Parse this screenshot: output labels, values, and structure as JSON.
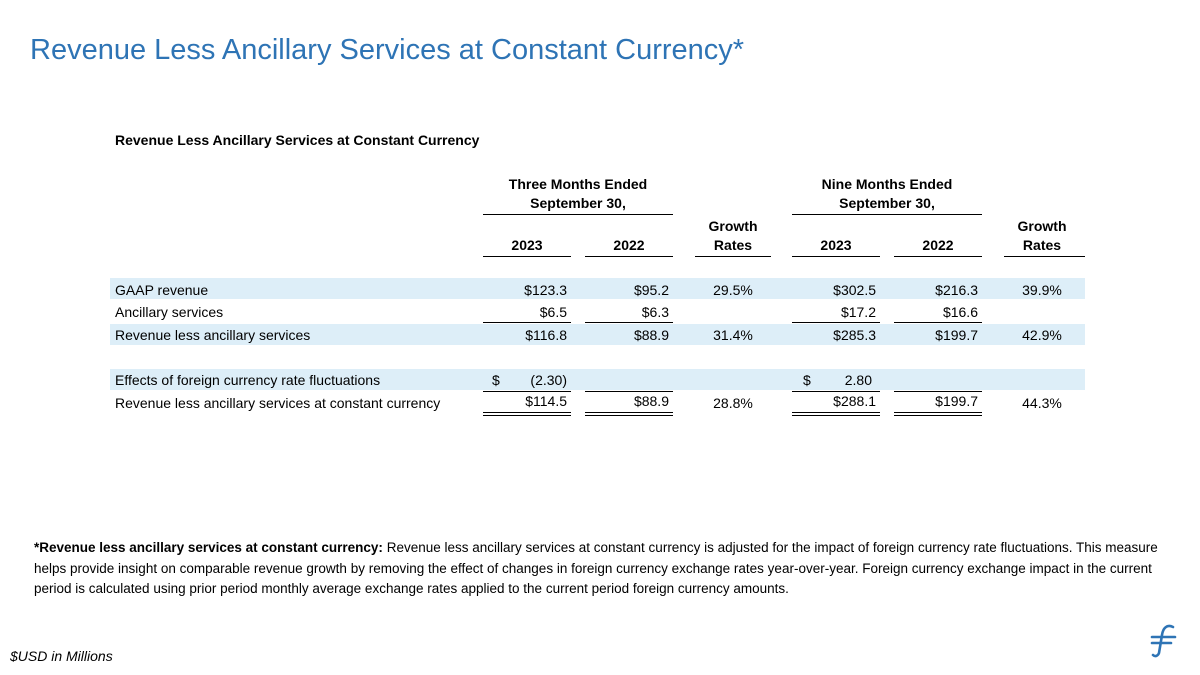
{
  "slide_title": "Revenue Less Ancillary Services at Constant Currency*",
  "table": {
    "title": "Revenue Less Ancillary Services at Constant Currency",
    "header": {
      "three_months_line1": "Three Months Ended",
      "three_months_line2": "September 30,",
      "nine_months_line1": "Nine Months Ended",
      "nine_months_line2": "September 30,",
      "growth_line1": "Growth",
      "growth_line2": "Rates",
      "year_current": "2023",
      "year_prior": "2022"
    },
    "rows": [
      {
        "label": "GAAP revenue",
        "q_2023": "$123.3",
        "q_2022": "$95.2",
        "q_growth": "29.5%",
        "ytd_2023": "$302.5",
        "ytd_2022": "$216.3",
        "ytd_growth": "39.9%"
      },
      {
        "label": "Ancillary services",
        "q_2023": "$6.5",
        "q_2022": "$6.3",
        "q_growth": "",
        "ytd_2023": "$17.2",
        "ytd_2022": "$16.6",
        "ytd_growth": ""
      },
      {
        "label": "Revenue less ancillary services",
        "q_2023": "$116.8",
        "q_2022": "$88.9",
        "q_growth": "31.4%",
        "ytd_2023": "$285.3",
        "ytd_2022": "$199.7",
        "ytd_growth": "42.9%"
      },
      {
        "label": "Effects of foreign currency rate fluctuations",
        "q_2023_symbol": "$",
        "q_2023": "(2.30)",
        "q_2022": "",
        "q_growth": "",
        "ytd_2023_symbol": "$",
        "ytd_2023": "2.80",
        "ytd_2022": "",
        "ytd_growth": ""
      },
      {
        "label": "Revenue less ancillary services at constant currency",
        "q_2023": "$114.5",
        "q_2022": "$88.9",
        "q_growth": "28.8%",
        "ytd_2023": "$288.1",
        "ytd_2022": "$199.7",
        "ytd_growth": "44.3%"
      }
    ]
  },
  "footnote": {
    "term": "*Revenue less ancillary services at constant currency:",
    "text": " Revenue less ancillary services at constant currency is adjusted for the  impact of foreign currency rate fluctuations. This measure helps provide insight on comparable revenue growth by removing the effect of changes in foreign currency exchange rates year-over-year. Foreign currency exchange impact in the current period is calculated using prior period monthly average exchange rates applied to the current period foreign currency amounts."
  },
  "units_note": "$USD in Millions",
  "colors": {
    "title_blue": "#2e74b5",
    "band_blue": "#ddeef8"
  }
}
